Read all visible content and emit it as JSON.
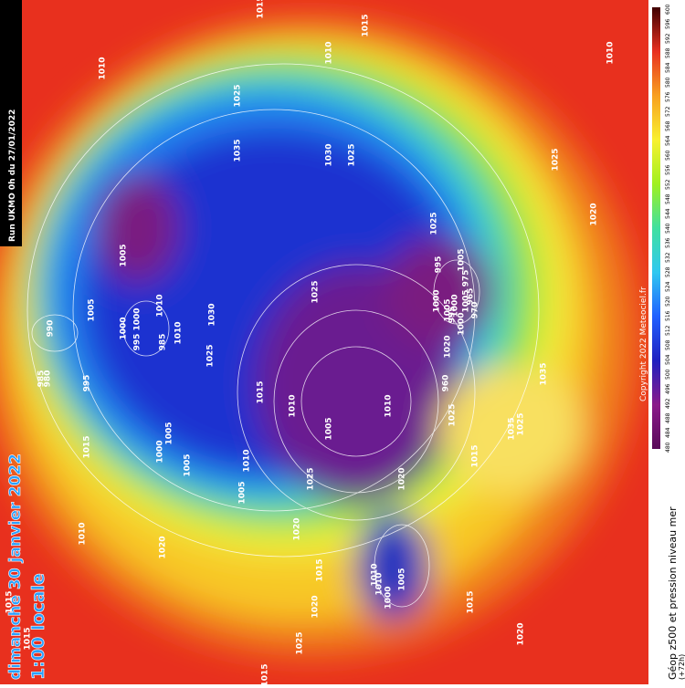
{
  "header": {
    "run": "Run UKMO 0h du 27/01/2022",
    "date": "dimanche 30 janvier 2022",
    "time": "1:00 locale"
  },
  "legend": {
    "title": "Géop z500 et pression niveau mer",
    "lead": "(+72h)",
    "copyright": "Copyright 2022 Meteociel.fr",
    "scale": [
      "480",
      "484",
      "488",
      "492",
      "496",
      "500",
      "504",
      "508",
      "512",
      "516",
      "520",
      "524",
      "528",
      "532",
      "536",
      "540",
      "544",
      "548",
      "552",
      "556",
      "560",
      "564",
      "568",
      "572",
      "576",
      "580",
      "584",
      "588",
      "592",
      "596",
      "600"
    ]
  },
  "isobars": [
    "1010",
    "1015",
    "1010",
    "1015",
    "1010",
    "1025",
    "1035",
    "1030",
    "1025",
    "1025",
    "1005",
    "1000",
    "1005",
    "1010",
    "985",
    "1000",
    "995",
    "1010",
    "990",
    "985",
    "980",
    "995",
    "1030",
    "1025",
    "1025",
    "1015",
    "1010",
    "1005",
    "1010",
    "995",
    "1000",
    "1000",
    "1005",
    "1005",
    "995",
    "1000",
    "1005",
    "965",
    "970",
    "975",
    "960",
    "1020",
    "1025",
    "1015",
    "1035",
    "1025",
    "1020",
    "1035",
    "1025",
    "1010",
    "1005",
    "1000",
    "1005",
    "1020",
    "1015",
    "1010",
    "1000",
    "1015",
    "1010",
    "1005",
    "1020",
    "1010",
    "1005",
    "1015",
    "1020",
    "1025",
    "1020",
    "1015",
    "1015",
    "1015",
    "1025",
    "1020"
  ]
}
